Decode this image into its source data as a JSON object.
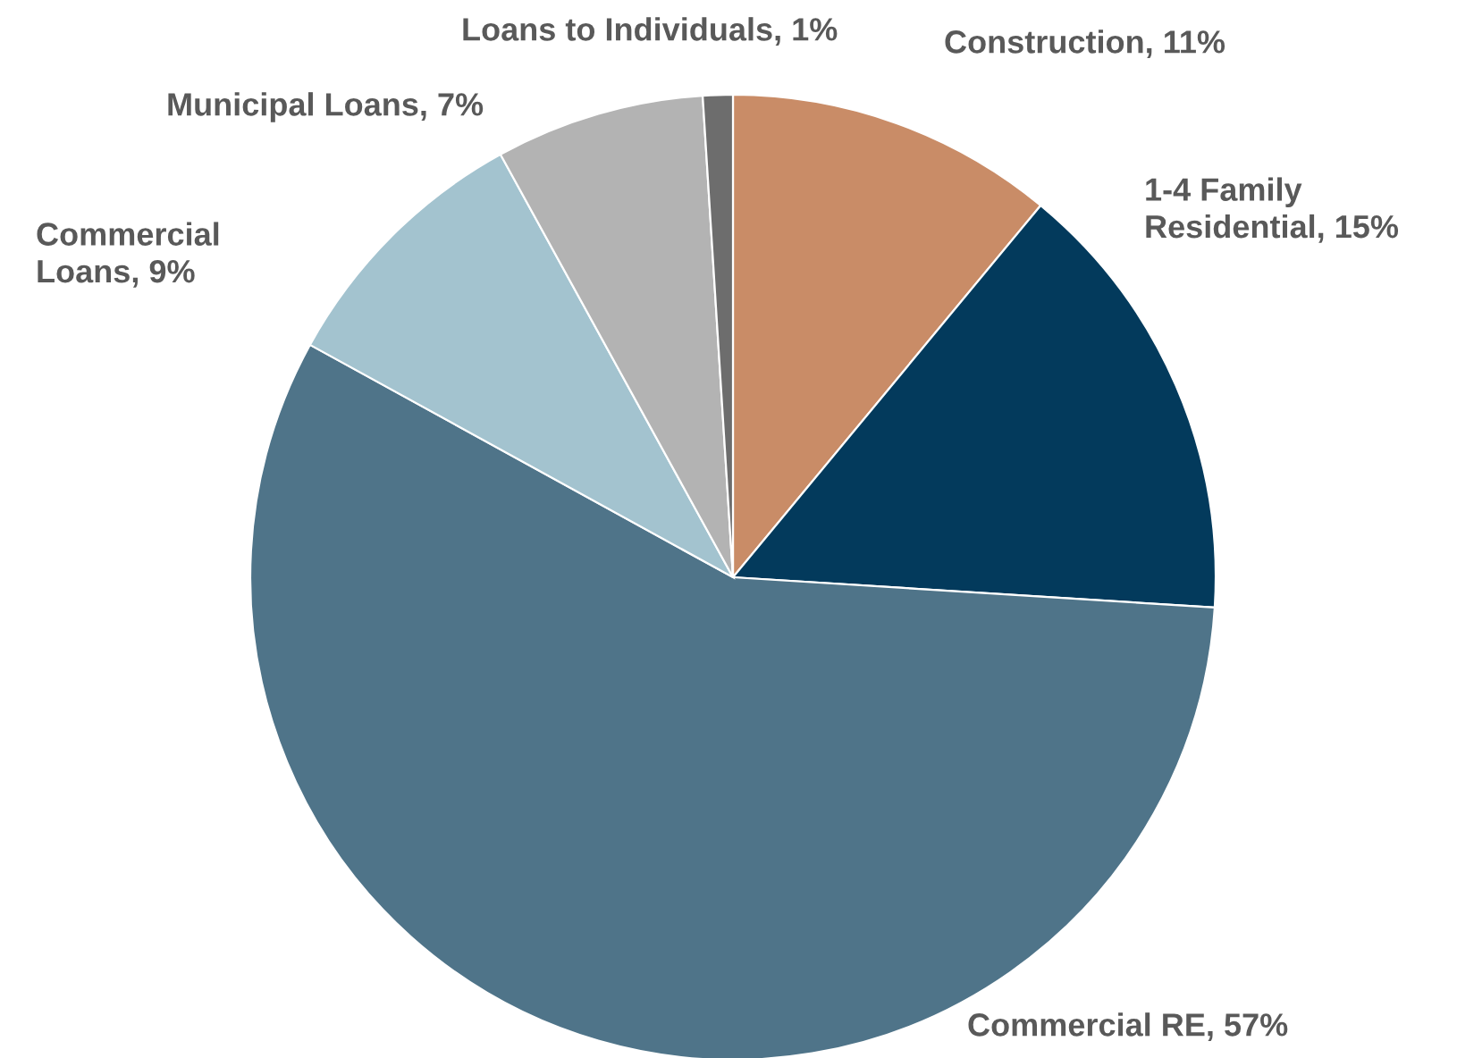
{
  "chart_data": {
    "type": "pie",
    "categories": [
      "Construction",
      "1-4 Family\nResidential",
      "Commercial RE",
      "Commercial\nLoans",
      "Municipal Loans",
      "Loans to Individuals"
    ],
    "values": [
      11,
      15,
      57,
      9,
      7,
      1
    ],
    "value_labels": [
      "11%",
      "15%",
      "57%",
      "9%",
      "7%",
      "1%"
    ],
    "colors": [
      "#c98c67",
      "#033a5c",
      "#4f7489",
      "#a3c3cf",
      "#b3b3b3",
      "#6d6d6d"
    ]
  }
}
